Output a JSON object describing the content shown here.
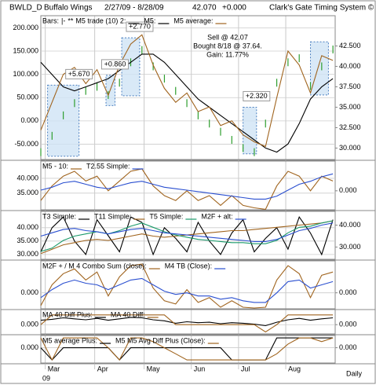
{
  "header": {
    "symbol": "BWLD_D",
    "name": "Buffalo Wings",
    "range": "2/27/09 - 8/28/09",
    "price": "42.070",
    "change": "+0.000",
    "system": "Clark's Gate Timing System ©"
  },
  "chart_data": [
    {
      "type": "price",
      "x": [
        0,
        5,
        10,
        15,
        20,
        25,
        30,
        35,
        40,
        45,
        50,
        55,
        60,
        65,
        70,
        75,
        80,
        85,
        90,
        95,
        100,
        105,
        110,
        115,
        120,
        125,
        130
      ],
      "xlim": [
        0,
        131
      ],
      "ylim": [
        -83,
        226
      ],
      "yticks": [
        {
          "value": 200,
          "label": "200.000"
        },
        {
          "value": 150,
          "label": "150.000"
        },
        {
          "value": 100,
          "label": "100.000"
        },
        {
          "value": 50,
          "label": "50.000"
        },
        {
          "value": 0,
          "label": "0.000"
        },
        {
          "value": -50,
          "label": "-50.000"
        }
      ],
      "y2lim": [
        28.6,
        46.2
      ],
      "y2ticks": [
        {
          "value": 42.5,
          "label": "42.500"
        },
        {
          "value": 40,
          "label": "40.000"
        },
        {
          "value": 37.5,
          "label": "37.500"
        },
        {
          "value": 35,
          "label": "35.000"
        },
        {
          "value": 32.5,
          "label": "32.500"
        },
        {
          "value": 30,
          "label": "30.000"
        }
      ],
      "grid": true,
      "bars_symbol": "|-",
      "trade_symbol": "**",
      "trades_name": "M5 trade (10) 2:",
      "series": [
        {
          "name": "Bars:",
          "color": "#2e9e2e",
          "axis": "y2",
          "mark": "ticks",
          "values": [
            29.5,
            31.5,
            34,
            35.5,
            37,
            37.5,
            36.5,
            38,
            40.5,
            42,
            40,
            38.5,
            37,
            35.5,
            34,
            33,
            32,
            31,
            30,
            29.5,
            33,
            38,
            40.5,
            41,
            37.6,
            40,
            42.07
          ]
        },
        {
          "name": "M5:",
          "color": "#000000",
          "axis": "y2",
          "mark": "line",
          "values": [
            40.5,
            39,
            37.5,
            37,
            37.5,
            38,
            38.5,
            39.5,
            40.5,
            41.5,
            41.5,
            40.5,
            39,
            37.5,
            36,
            35,
            34,
            33,
            32,
            31,
            30,
            29.5,
            30.5,
            33,
            36,
            37.5,
            38.5
          ]
        },
        {
          "name": "M5 average:",
          "color": "#a0641e",
          "mark": "line",
          "values": [
            -20,
            40,
            100,
            115,
            80,
            110,
            55,
            120,
            165,
            185,
            120,
            70,
            40,
            60,
            20,
            30,
            -10,
            0,
            -30,
            -45,
            -55,
            50,
            150,
            120,
            60,
            140,
            130
          ]
        }
      ],
      "trades": [
        {
          "x": [
            3,
            17
          ],
          "y": [
            29.0,
            37.7
          ],
          "label": "+5.670"
        },
        {
          "x": [
            29,
            33
          ],
          "y": [
            35.2,
            38.9
          ],
          "label": "+0.860"
        },
        {
          "x": [
            36,
            44
          ],
          "y": [
            36.4,
            43.5
          ],
          "label": "+2.770"
        },
        {
          "x": [
            90,
            96
          ],
          "y": [
            29.3,
            35.0
          ],
          "label": "+2.320"
        },
        {
          "x": [
            120,
            128
          ],
          "y": [
            36.5,
            43.0
          ]
        }
      ],
      "annotations": [
        "Sell @ 42.07",
        "Bought 8/18 @ 37.64.",
        "Gain: 11.77%"
      ]
    },
    {
      "type": "line",
      "x": [
        0,
        5,
        10,
        15,
        20,
        25,
        30,
        35,
        40,
        45,
        50,
        55,
        60,
        65,
        70,
        75,
        80,
        85,
        90,
        95,
        100,
        105,
        110,
        115,
        120,
        125,
        130
      ],
      "xlim": [
        0,
        131
      ],
      "ylim": [
        29.4,
        45.8
      ],
      "yticks": [
        {
          "value": 40,
          "label": "40.000"
        },
        {
          "value": 35,
          "label": "35.000"
        }
      ],
      "y2lim": [
        -3.9,
        6.1
      ],
      "y2ticks": [
        {
          "value": 0,
          "label": "0.000"
        }
      ],
      "grid": true,
      "series": [
        {
          "name": "M5 - 10:",
          "color": "#a0641e",
          "axis": "y2",
          "values": [
            -2,
            1,
            3,
            4,
            2,
            3,
            0,
            2,
            4,
            4.5,
            1,
            -1,
            -2,
            0,
            -2,
            -1,
            -3,
            -1,
            -3,
            -3.5,
            -3.8,
            1,
            4,
            3,
            0,
            3,
            2
          ]
        },
        {
          "name": "T2.55 Simple:",
          "color": "#2a4fd0",
          "values": [
            36,
            37,
            38.5,
            39,
            38,
            37,
            36.5,
            37.5,
            38.5,
            39,
            38,
            37,
            36.5,
            36,
            35.5,
            35,
            34.5,
            34,
            33.5,
            33,
            33,
            34,
            36,
            38,
            39,
            40.5,
            41.5
          ]
        }
      ]
    },
    {
      "type": "line",
      "x": [
        0,
        5,
        10,
        15,
        20,
        25,
        30,
        35,
        40,
        45,
        50,
        55,
        60,
        65,
        70,
        75,
        80,
        85,
        90,
        95,
        100,
        105,
        110,
        115,
        120,
        125,
        130
      ],
      "xlim": [
        0,
        131
      ],
      "ylim": [
        28.2,
        46.1
      ],
      "yticks": [
        {
          "value": 40,
          "label": "40.000"
        },
        {
          "value": 35,
          "label": "35.000"
        },
        {
          "value": 30,
          "label": "30.000"
        }
      ],
      "y2lim": [
        24.4,
        46.3
      ],
      "y2ticks": [
        {
          "value": 40,
          "label": "40.000"
        },
        {
          "value": 30,
          "label": "30.000"
        }
      ],
      "grid": true,
      "series": [
        {
          "name": "T3 Simple:",
          "color": "#000000",
          "values": [
            31,
            40,
            44,
            35,
            30,
            43,
            37,
            31,
            44,
            42,
            30,
            40,
            36,
            31,
            42,
            35,
            30,
            38,
            43,
            31,
            36,
            40,
            32,
            44,
            38,
            30,
            43
          ]
        },
        {
          "name": "T11 Simple:",
          "color": "#a0641e",
          "axis": "y2",
          "values": [
            27,
            29,
            31,
            32,
            33,
            33.5,
            33,
            34,
            35,
            36,
            35,
            34.5,
            35,
            35.5,
            36,
            36.5,
            37,
            37.5,
            37.5,
            38,
            38.5,
            39,
            39.5,
            40,
            40.5,
            41,
            42
          ]
        },
        {
          "name": "T5 Simple:",
          "color": "#1a9a6a",
          "axis": "y2",
          "values": [
            28,
            29.5,
            33,
            35,
            36,
            37,
            36,
            37.5,
            39.5,
            41,
            39,
            37,
            35.5,
            34.5,
            33.5,
            33,
            32.5,
            32,
            32,
            31.5,
            31.5,
            33,
            36.5,
            39,
            39.5,
            41,
            42
          ]
        },
        {
          "name": "M2F + alt:",
          "color": "#2a4fd0",
          "axis": "y2",
          "values": [
            35,
            36.5,
            38,
            38.5,
            37.5,
            37,
            36,
            37,
            38,
            38.5,
            37.5,
            36.5,
            36,
            35.5,
            35,
            34.5,
            34,
            33.5,
            33,
            32.5,
            32.5,
            33.5,
            35.5,
            37.5,
            38.5,
            40,
            41
          ]
        }
      ]
    },
    {
      "type": "line",
      "x": [
        0,
        5,
        10,
        15,
        20,
        25,
        30,
        35,
        40,
        45,
        50,
        55,
        60,
        65,
        70,
        75,
        80,
        85,
        90,
        95,
        100,
        105,
        110,
        115,
        120,
        125,
        130
      ],
      "xlim": [
        0,
        131
      ],
      "ylim": [
        -1,
        2
      ],
      "yticks": [
        {
          "value": 0,
          "label": "0.000"
        }
      ],
      "y2lim": [
        -1,
        2
      ],
      "y2ticks": [
        {
          "value": 0,
          "label": "0.000"
        }
      ],
      "grid": true,
      "series": [
        {
          "name": "M2F + / M 4 Combo Sum (close):",
          "color": "#a0641e",
          "values": [
            -0.8,
            0.5,
            1.2,
            1.5,
            0.8,
            1.3,
            -0.2,
            1,
            1.7,
            1.8,
            0.3,
            -0.5,
            -0.7,
            0.2,
            -0.6,
            -0.3,
            -0.9,
            -0.5,
            -0.9,
            -0.95,
            -0.9,
            0.8,
            1.7,
            1.2,
            -0.3,
            1.1,
            1.3
          ]
        },
        {
          "name": "M4 TB (Close):",
          "color": "#2a4fd0",
          "values": [
            -0.3,
            0.2,
            0.6,
            0.8,
            0.6,
            0.5,
            0.2,
            0.5,
            0.8,
            0.9,
            0.5,
            0.1,
            -0.1,
            0,
            -0.2,
            -0.2,
            -0.4,
            -0.3,
            -0.5,
            -0.6,
            -0.6,
            0,
            0.7,
            0.8,
            0.3,
            0.5,
            0.7
          ]
        }
      ]
    },
    {
      "type": "line",
      "x": [
        0,
        5,
        10,
        15,
        20,
        25,
        30,
        35,
        40,
        45,
        50,
        55,
        60,
        65,
        70,
        75,
        80,
        85,
        90,
        95,
        100,
        105,
        110,
        115,
        120,
        125,
        130
      ],
      "xlim": [
        0,
        131
      ],
      "ylim": [
        -1.9,
        3.1
      ],
      "yticks": [
        {
          "value": 0,
          "label": "0.000"
        }
      ],
      "y2lim": [
        -1.9,
        3.1
      ],
      "y2ticks": [
        {
          "value": 0,
          "label": "0.000"
        }
      ],
      "grid": true,
      "series": [
        {
          "name": "MA 40 Diff Plus:",
          "color": "#000000",
          "values": [
            0.9,
            1.1,
            1.4,
            1.2,
            1.0,
            1.3,
            0.9,
            1.2,
            1.5,
            1.4,
            1.0,
            0.8,
            0.3,
            0.6,
            0.4,
            0.5,
            0.2,
            0.4,
            0.3,
            0.1,
            -0.2,
            0.5,
            1.0,
            1.3,
            0.9,
            1.2,
            1.4
          ]
        },
        {
          "name": "MA 40 Diff:",
          "color": "#a0641e",
          "values": [
            0,
            2,
            2,
            2,
            2,
            2,
            2,
            2,
            2,
            2,
            2,
            2,
            0,
            0,
            0,
            0,
            0,
            0,
            0,
            0,
            -1.5,
            0,
            2,
            2,
            2,
            2,
            2
          ]
        }
      ]
    },
    {
      "type": "line",
      "x": [
        0,
        5,
        10,
        15,
        20,
        25,
        30,
        35,
        40,
        45,
        50,
        55,
        60,
        65,
        70,
        75,
        80,
        85,
        90,
        95,
        100,
        105,
        110,
        115,
        120,
        125,
        130
      ],
      "xlim": [
        0,
        131
      ],
      "ylim": [
        -1.25,
        1
      ],
      "yticks": [
        {
          "value": 0,
          "label": "0.000"
        }
      ],
      "y2lim": [
        -1.25,
        1
      ],
      "y2ticks": [
        {
          "value": 0,
          "label": "0.000"
        }
      ],
      "grid": true,
      "series": [
        {
          "name": "M5 average Plus:",
          "color": "#000000",
          "values": [
            0,
            -1,
            0,
            0,
            0,
            0,
            0,
            -1,
            0,
            0,
            0,
            0,
            0,
            0,
            0,
            0,
            0,
            -1,
            -1,
            -1,
            -1,
            0.8,
            0.8,
            0.8,
            0.8,
            0.8,
            0.8
          ]
        },
        {
          "name": "M5 M5 Avg Diff Plus (Close):",
          "color": "#a0641e",
          "values": [
            0.8,
            -1,
            0.8,
            0.8,
            0.8,
            0.8,
            0,
            -1,
            0.8,
            0.8,
            0.5,
            0,
            -0.5,
            -1,
            -1,
            -1,
            -1,
            -1,
            -1,
            -1,
            -1,
            -0.5,
            0.3,
            0.8,
            0.8,
            0.5,
            0.8
          ]
        }
      ],
      "xticks": [
        {
          "value": 2,
          "label": "Mar"
        },
        {
          "value": 24,
          "label": "Apr"
        },
        {
          "value": 46,
          "label": "May"
        },
        {
          "value": 67,
          "label": "Jun"
        },
        {
          "value": 88,
          "label": "Jul"
        },
        {
          "value": 109,
          "label": "Aug"
        }
      ],
      "x_year": "09",
      "x_unit": "Daily"
    }
  ]
}
